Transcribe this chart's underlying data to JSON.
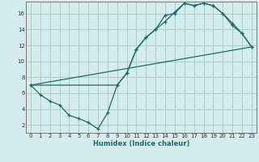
{
  "xlabel": "Humidex (Indice chaleur)",
  "bg_color": "#d4ecec",
  "grid_color": "#aacccc",
  "line_color": "#1a6b6b",
  "xlim": [
    -0.5,
    23.5
  ],
  "ylim": [
    1,
    17.5
  ],
  "xticks": [
    0,
    1,
    2,
    3,
    4,
    5,
    6,
    7,
    8,
    9,
    10,
    11,
    12,
    13,
    14,
    15,
    16,
    17,
    18,
    19,
    20,
    21,
    22,
    23
  ],
  "yticks": [
    2,
    4,
    6,
    8,
    10,
    12,
    14,
    16
  ],
  "line1_x": [
    0,
    1,
    2,
    3,
    4,
    5,
    6,
    7,
    8,
    9,
    10,
    11,
    12,
    13,
    14,
    15,
    16,
    17,
    18,
    19,
    20,
    21,
    22,
    23
  ],
  "line1_y": [
    7.0,
    5.8,
    5.0,
    4.5,
    3.2,
    2.8,
    2.3,
    1.5,
    3.5,
    7.0,
    8.5,
    11.5,
    13.0,
    14.0,
    15.8,
    16.0,
    17.3,
    17.0,
    17.3,
    17.0,
    16.0,
    14.5,
    13.5,
    11.8
  ],
  "line2_x": [
    0,
    9,
    10,
    11,
    12,
    13,
    14,
    15,
    16,
    17,
    18,
    19,
    20,
    21,
    22,
    23
  ],
  "line2_y": [
    7.0,
    7.0,
    8.5,
    11.5,
    13.0,
    14.0,
    15.0,
    16.2,
    17.3,
    17.0,
    17.3,
    17.0,
    16.0,
    14.8,
    13.5,
    11.8
  ],
  "line3_x": [
    0,
    23
  ],
  "line3_y": [
    7.0,
    11.8
  ]
}
